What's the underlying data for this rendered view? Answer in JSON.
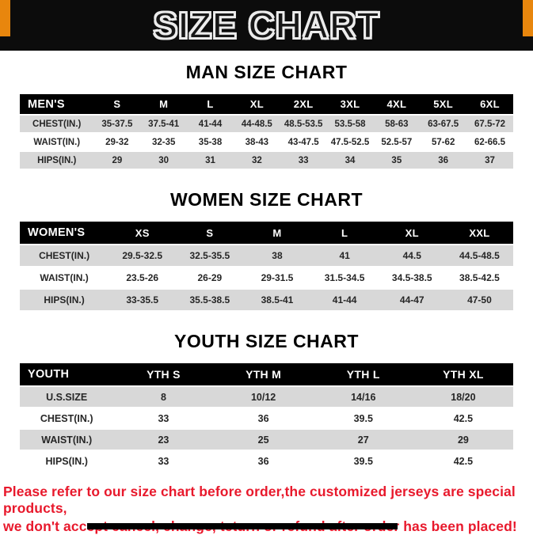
{
  "banner": {
    "title": "SIZE CHART",
    "bg": "#0c0c0c",
    "accent": "#e8860d"
  },
  "sections": [
    {
      "heading": "MAN SIZE CHART",
      "table": {
        "header": [
          "MEN'S",
          "S",
          "M",
          "L",
          "XL",
          "2XL",
          "3XL",
          "4XL",
          "5XL",
          "6XL"
        ],
        "rows": [
          [
            "CHEST(IN.)",
            "35-37.5",
            "37.5-41",
            "41-44",
            "44-48.5",
            "48.5-53.5",
            "53.5-58",
            "58-63",
            "63-67.5",
            "67.5-72"
          ],
          [
            "WAIST(IN.)",
            "29-32",
            "32-35",
            "35-38",
            "38-43",
            "43-47.5",
            "47.5-52.5",
            "52.5-57",
            "57-62",
            "62-66.5"
          ],
          [
            "HIPS(IN.)",
            "29",
            "30",
            "31",
            "32",
            "33",
            "34",
            "35",
            "36",
            "37"
          ]
        ]
      }
    },
    {
      "heading": "WOMEN SIZE CHART",
      "table": {
        "header": [
          "WOMEN'S",
          "XS",
          "S",
          "M",
          "L",
          "XL",
          "XXL"
        ],
        "rows": [
          [
            "CHEST(IN.)",
            "29.5-32.5",
            "32.5-35.5",
            "38",
            "41",
            "44.5",
            "44.5-48.5"
          ],
          [
            "WAIST(IN.)",
            "23.5-26",
            "26-29",
            "29-31.5",
            "31.5-34.5",
            "34.5-38.5",
            "38.5-42.5"
          ],
          [
            "HIPS(IN.)",
            "33-35.5",
            "35.5-38.5",
            "38.5-41",
            "41-44",
            "44-47",
            "47-50"
          ]
        ]
      }
    },
    {
      "heading": "YOUTH SIZE CHART",
      "table": {
        "header": [
          "YOUTH",
          "YTH S",
          "YTH M",
          "YTH L",
          "YTH XL"
        ],
        "rows": [
          [
            "U.S.SIZE",
            "8",
            "10/12",
            "14/16",
            "18/20"
          ],
          [
            "CHEST(IN.)",
            "33",
            "36",
            "39.5",
            "42.5"
          ],
          [
            "WAIST(IN.)",
            "23",
            "25",
            "27",
            "29"
          ],
          [
            "HIPS(IN.)",
            "33",
            "36",
            "39.5",
            "42.5"
          ]
        ]
      }
    }
  ],
  "footer": {
    "line1": "Please refer to our size chart before order,the customized jerseys are special products,",
    "line2": "we don't accept cancel, change, teturn or refund after order has been placed!",
    "color": "#e8192c"
  }
}
